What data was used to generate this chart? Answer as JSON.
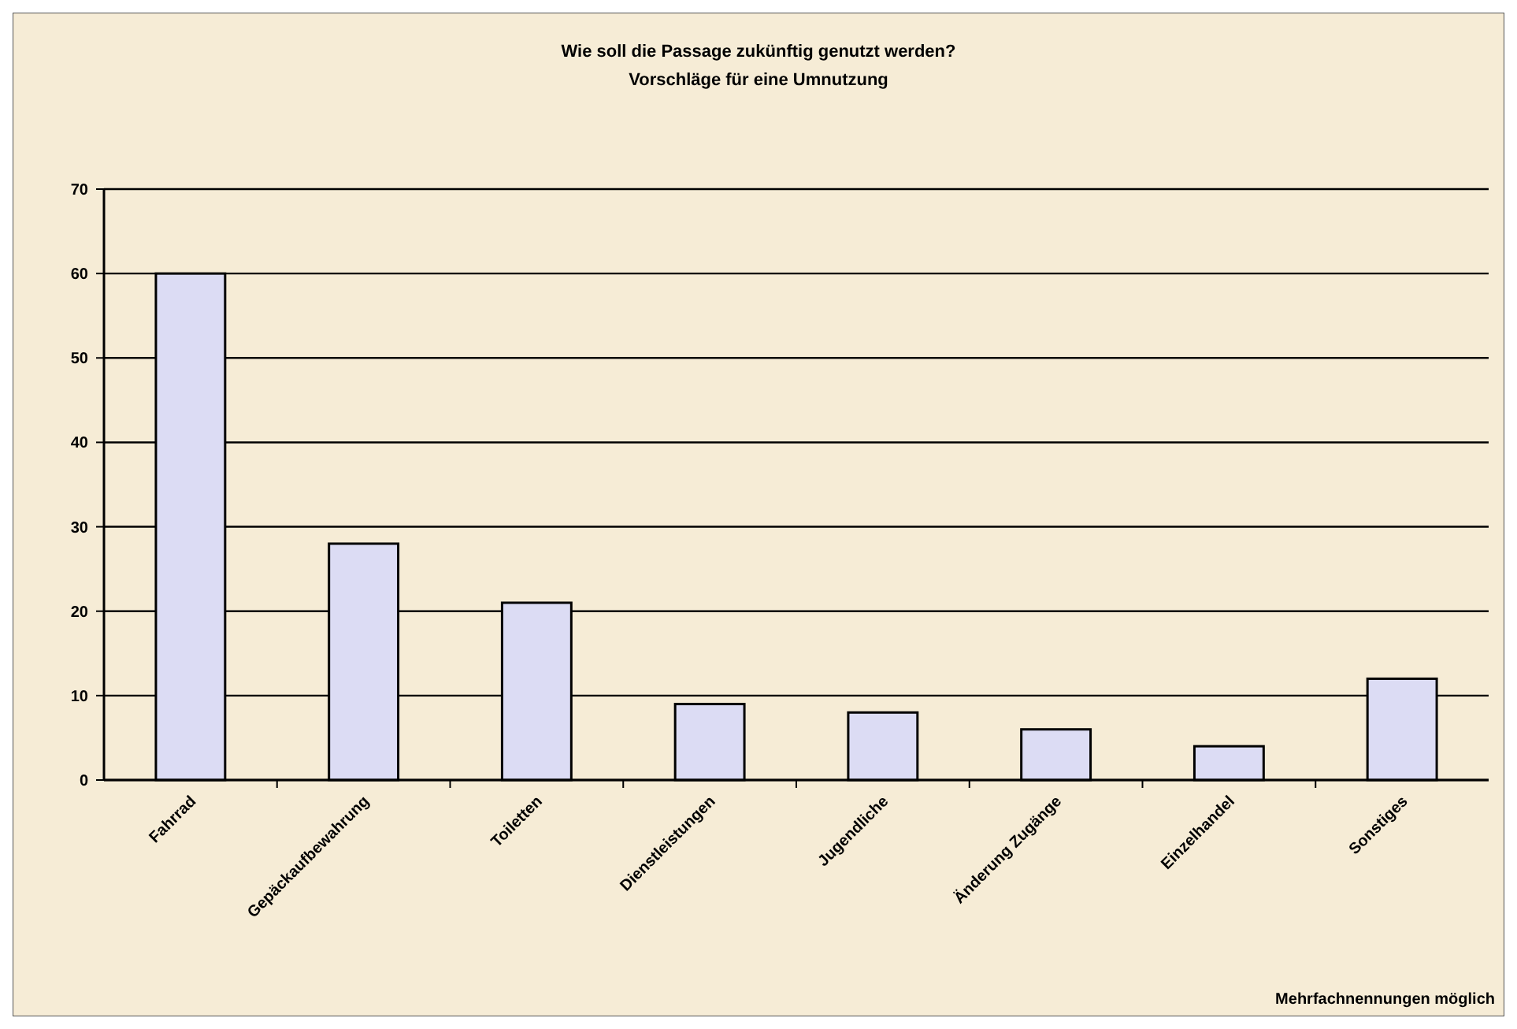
{
  "chart_data": {
    "type": "bar",
    "title": "Wie soll die Passage zukünftig genutzt werden?",
    "subtitle": "Vorschläge für eine Umnutzung",
    "categories": [
      "Fahrrad",
      "Gepäckaufbewahrung",
      "Toiletten",
      "Dienstleistungen",
      "Jugendliche",
      "Änderung Zugänge",
      "Einzelhandel",
      "Sonstiges"
    ],
    "values": [
      60,
      28,
      21,
      9,
      8,
      6,
      4,
      12
    ],
    "color": "#dcdcf4",
    "ylim": [
      0,
      70
    ],
    "yticks": [
      0,
      10,
      20,
      30,
      40,
      50,
      60,
      70
    ],
    "grid": "y",
    "annotations": [
      "Mehrfachnennungen möglich"
    ]
  }
}
